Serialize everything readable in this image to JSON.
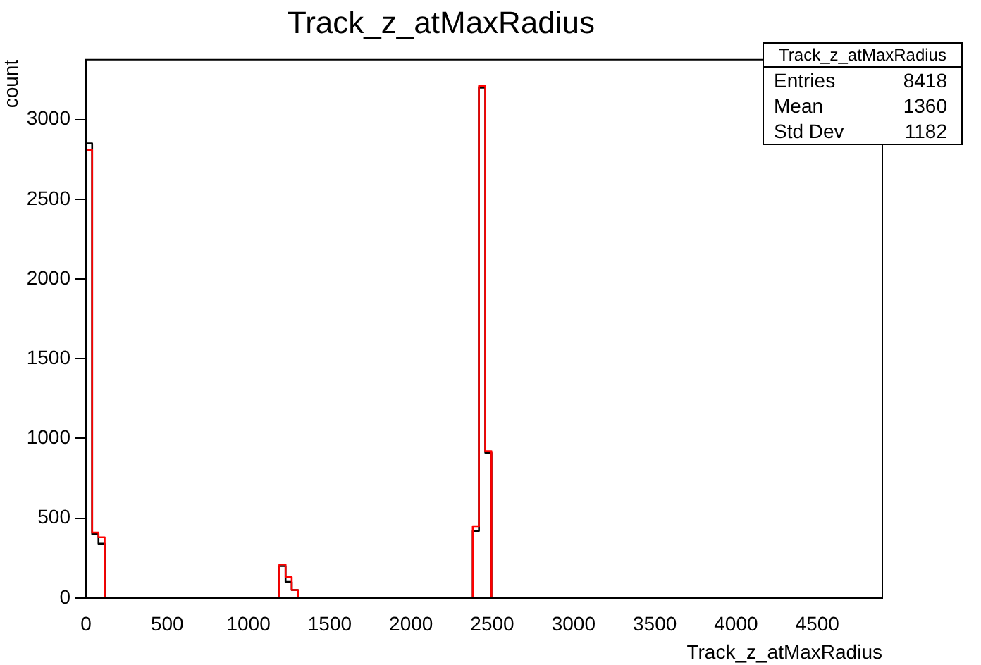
{
  "chart_data": {
    "type": "histogram",
    "title": "Track_z_atMaxRadius",
    "xlabel": "Track_z_atMaxRadius",
    "ylabel": "count",
    "bins": [
      0,
      38,
      77,
      115,
      1190,
      1228,
      1266,
      1304,
      2380,
      2418,
      2457,
      2495,
      4900
    ],
    "series": [
      {
        "color": "#000000",
        "values": [
          2850,
          400,
          340,
          0,
          200,
          100,
          50,
          0,
          420,
          3200,
          910,
          0
        ]
      },
      {
        "color": "#ff0000",
        "values": [
          2810,
          410,
          380,
          0,
          210,
          130,
          50,
          0,
          450,
          3210,
          920,
          0
        ]
      }
    ],
    "xlim": [
      0,
      4900
    ],
    "xticks": [
      0,
      500,
      1000,
      1500,
      2000,
      2500,
      3000,
      3500,
      4000,
      4500
    ],
    "ylim": [
      0,
      3375
    ],
    "yticks": [
      0,
      500,
      1000,
      1500,
      2000,
      2500,
      3000
    ],
    "grid": false,
    "legend": false,
    "annotations": [
      "Track_z_atMaxRadius",
      "Entries",
      "8418",
      "Mean",
      "1360",
      "Std Dev",
      "1182"
    ]
  }
}
